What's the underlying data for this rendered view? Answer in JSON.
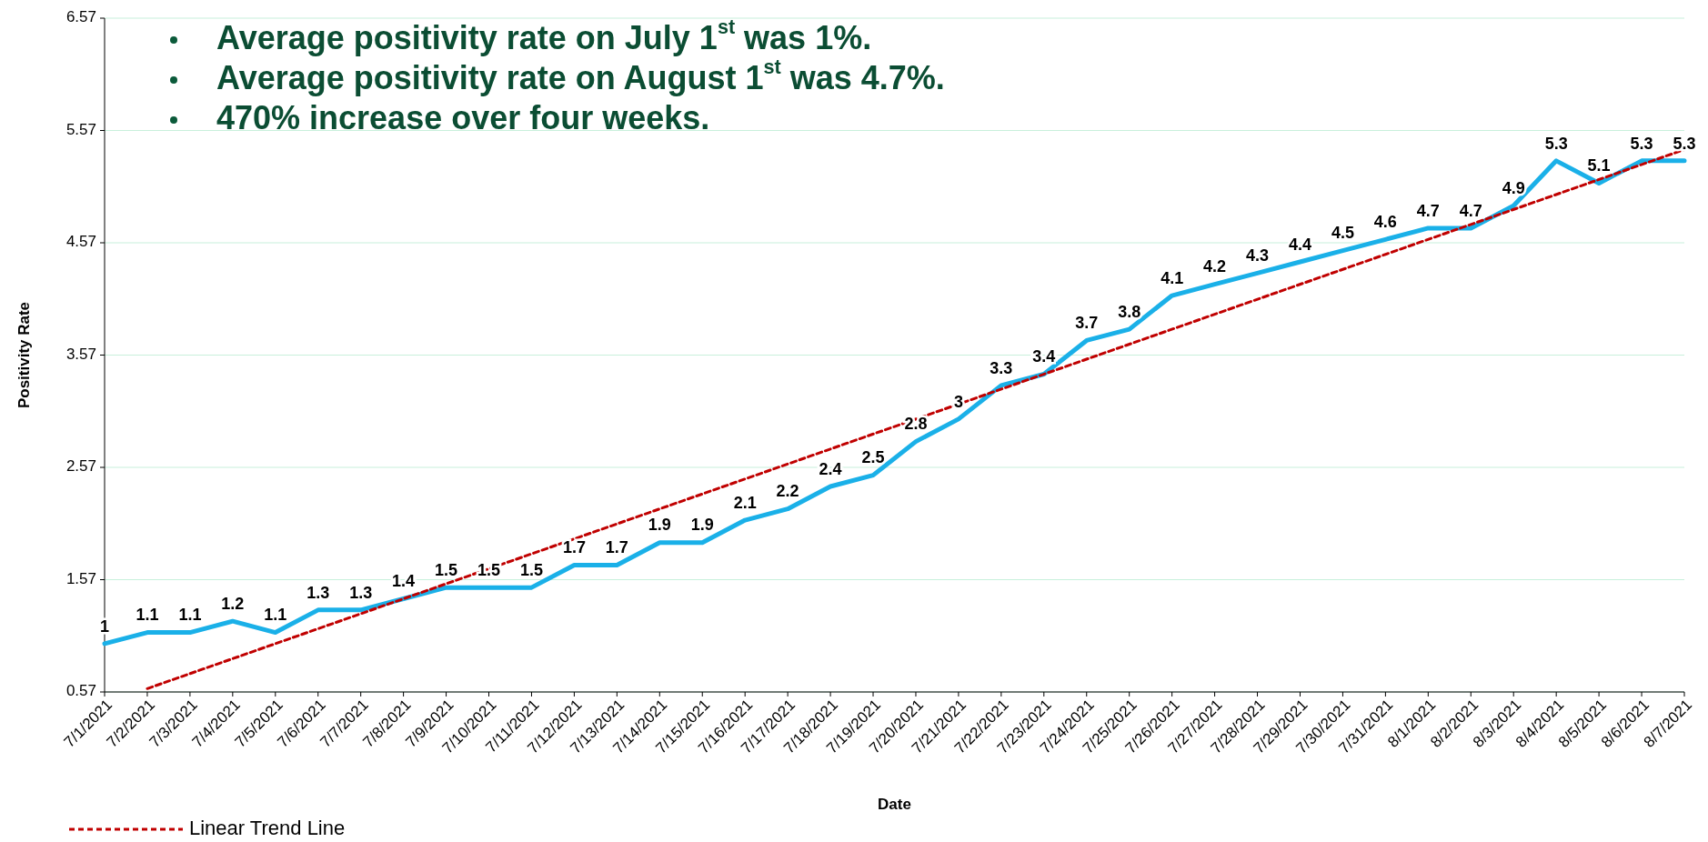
{
  "chart_data": {
    "type": "line",
    "xlabel": "Date",
    "ylabel": "Positivity Rate",
    "categories": [
      "7/1/2021",
      "7/2/2021",
      "7/3/2021",
      "7/4/2021",
      "7/5/2021",
      "7/6/2021",
      "7/7/2021",
      "7/8/2021",
      "7/9/2021",
      "7/10/2021",
      "7/11/2021",
      "7/12/2021",
      "7/13/2021",
      "7/14/2021",
      "7/15/2021",
      "7/16/2021",
      "7/17/2021",
      "7/18/2021",
      "7/19/2021",
      "7/20/2021",
      "7/21/2021",
      "7/22/2021",
      "7/23/2021",
      "7/24/2021",
      "7/25/2021",
      "7/26/2021",
      "7/27/2021",
      "7/28/2021",
      "7/29/2021",
      "7/30/2021",
      "7/31/2021",
      "8/1/2021",
      "8/2/2021",
      "8/3/2021",
      "8/4/2021",
      "8/5/2021",
      "8/6/2021",
      "8/7/2021"
    ],
    "series": [
      {
        "color": "#1ab0e8",
        "values": [
          1,
          1.1,
          1.1,
          1.2,
          1.1,
          1.3,
          1.3,
          1.4,
          1.5,
          1.5,
          1.5,
          1.7,
          1.7,
          1.9,
          1.9,
          2.1,
          2.2,
          2.4,
          2.5,
          2.8,
          3,
          3.3,
          3.4,
          3.7,
          3.8,
          4.1,
          4.2,
          4.3,
          4.4,
          4.5,
          4.6,
          4.7,
          4.7,
          4.9,
          5.3,
          5.1,
          5.3,
          5.3
        ],
        "value_labels": [
          "1",
          "1.1",
          "1.1",
          "1.2",
          "1.1",
          "1.3",
          "1.3",
          "1.4",
          "1.5",
          "1.5",
          "1.5",
          "1.7",
          "1.7",
          "1.9",
          "1.9",
          "2.1",
          "2.2",
          "2.4",
          "2.5",
          "2.8",
          "3",
          "3.3",
          "3.4",
          "3.7",
          "3.8",
          "4.1",
          "4.2",
          "4.3",
          "4.4",
          "4.5",
          "4.6",
          "4.7",
          "4.7",
          "4.9",
          "5.3",
          "5.1",
          "5.3",
          "5.3"
        ]
      },
      {
        "type": "line",
        "name": "Linear Trend Line",
        "color": "#c00000",
        "line_style": "dashed",
        "x": [
          "7/2/2021",
          "8/7/2021"
        ],
        "values": [
          0.6,
          5.4
        ]
      }
    ],
    "ylim": [
      0.57,
      6.57
    ],
    "yticks": [
      0.57,
      1.57,
      2.57,
      3.57,
      4.57,
      5.57,
      6.57
    ],
    "grid": "y",
    "legend": "bottom left",
    "marker": "none",
    "annotations": [
      "Average positivity rate on July 1$^{st}$ was 1%.",
      "Average positivity rate on August 1$^{st}$ was 4.7%.",
      "470% increase over four weeks."
    ]
  }
}
